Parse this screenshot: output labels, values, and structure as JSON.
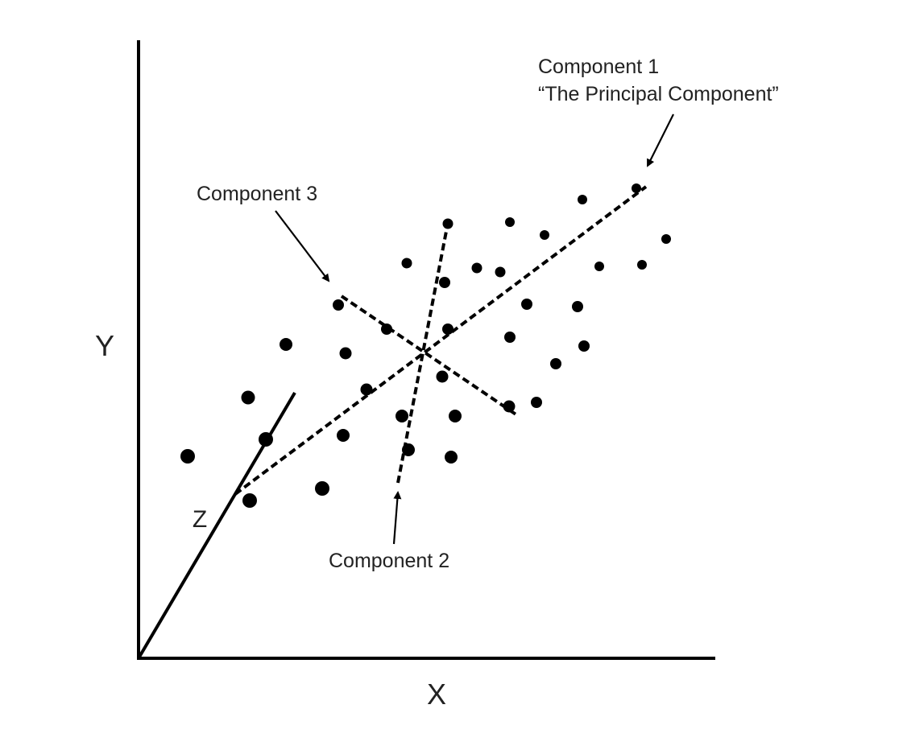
{
  "axes": {
    "x_label": "X",
    "y_label": "Y",
    "z_label": "Z"
  },
  "components": {
    "component1": {
      "line1": "Component 1",
      "line2": "“The Principal Component”"
    },
    "component2": {
      "label": "Component 2"
    },
    "component3": {
      "label": "Component 3"
    }
  },
  "colors": {
    "ink": "#000000",
    "text": "#222222",
    "background": "#ffffff"
  }
}
